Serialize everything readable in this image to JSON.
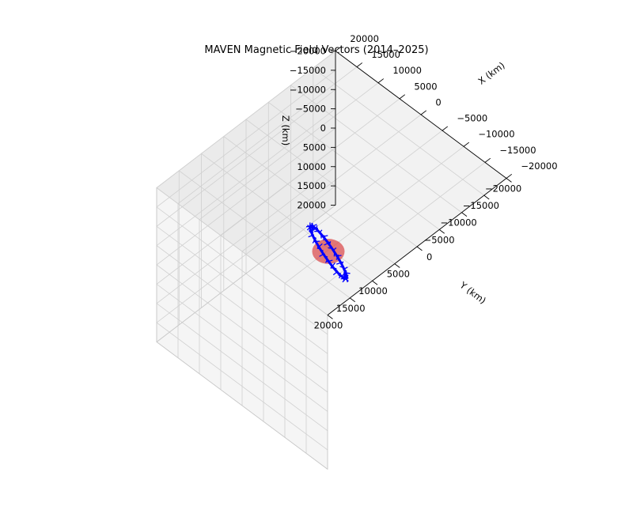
{
  "chart_data": {
    "type": "scatter",
    "projection": "3d",
    "title": "MAVEN Magnetic Field Vectors (2014–2025)",
    "xlabel": "X (km)",
    "ylabel": "Y (km)",
    "zlabel": "Z (km)",
    "xlim": [
      -20000,
      20000
    ],
    "ylim": [
      -20000,
      20000
    ],
    "zlim": [
      -20000,
      20000
    ],
    "x_ticks": [
      "−20000",
      "−15000",
      "−10000",
      "−5000",
      "0",
      "5000",
      "10000",
      "15000",
      "20000"
    ],
    "y_ticks": [
      "−20000",
      "−15000",
      "−10000",
      "−5000",
      "0",
      "5000",
      "10000",
      "15000",
      "20000"
    ],
    "z_ticks": [
      "−20000",
      "−15000",
      "−10000",
      "−5000",
      "0",
      "5000",
      "10000",
      "15000",
      "20000"
    ],
    "grid": true,
    "series": [
      {
        "color": "#0000ff",
        "marker": "vector arrows",
        "orbit": {
          "center": [
            0,
            0,
            0
          ],
          "semi_major_km": 6500,
          "semi_minor_km": 1500
        }
      },
      {
        "color": "#d62728",
        "marker": "sphere",
        "center": [
          0,
          0,
          0
        ],
        "radius_km": 3390
      }
    ]
  }
}
